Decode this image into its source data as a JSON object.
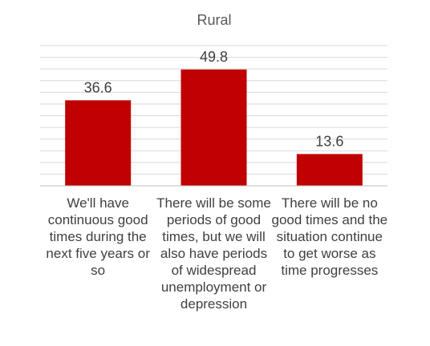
{
  "chart_data": {
    "type": "bar",
    "title": "Rural",
    "categories": [
      "We'll have continuous good times during the next five years or so",
      "There will be some periods of good times, but we will also have periods of widespread unemployment or depression",
      "There will be no good times and the situation continue to get worse as time progresses"
    ],
    "values": [
      36.6,
      49.8,
      13.6
    ],
    "value_labels": [
      "36.6",
      "49.8",
      "13.6"
    ],
    "ylim": [
      0,
      60
    ],
    "grid": true,
    "bar_color": "#c00000",
    "xlabel": "",
    "ylabel": ""
  }
}
